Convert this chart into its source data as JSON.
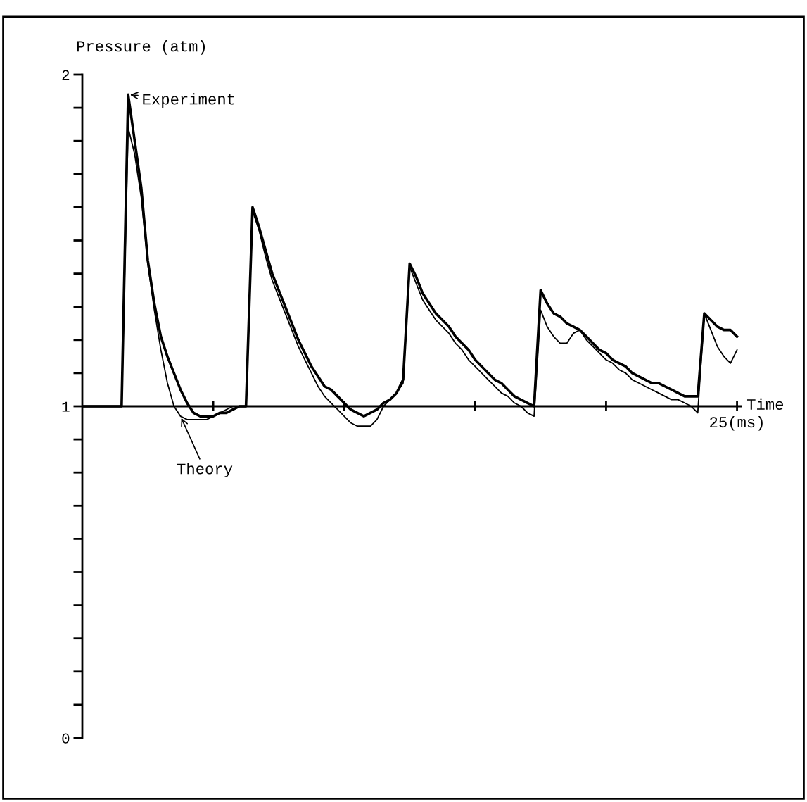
{
  "chart_data": {
    "type": "line",
    "ylabel": "Pressure (atm)",
    "xlabel": "Time",
    "categories": [
      null,
      null,
      null,
      null,
      null,
      null,
      null,
      null,
      null,
      null,
      null,
      null,
      null,
      null,
      null,
      null,
      null,
      null,
      null,
      null,
      null,
      null,
      null,
      null,
      null,
      null,
      null,
      null,
      null,
      null,
      null,
      null,
      null,
      null,
      null,
      null,
      null,
      null,
      null,
      null,
      null,
      null,
      null,
      null,
      null,
      null,
      null,
      null,
      null,
      null,
      null,
      null,
      null,
      null,
      null,
      null,
      null,
      null,
      null,
      null,
      null,
      null,
      null,
      null,
      null,
      null,
      null,
      null,
      null,
      null,
      null,
      null,
      null,
      null,
      null,
      null,
      null,
      null,
      null,
      null,
      null,
      null,
      null,
      null,
      null,
      null,
      null,
      null,
      null,
      null,
      null,
      null,
      null,
      null,
      null,
      null,
      null,
      null,
      null,
      null,
      null
    ],
    "ylim": [
      0,
      2
    ],
    "yticks": [
      {
        "value": 0,
        "label": "0"
      },
      {
        "value": 0.1,
        "label": null
      },
      {
        "value": 0.2,
        "label": null
      },
      {
        "value": 0.3,
        "label": null
      },
      {
        "value": 0.4,
        "label": null
      },
      {
        "value": 0.5,
        "label": null
      },
      {
        "value": 0.6,
        "label": null
      },
      {
        "value": 0.7,
        "label": null
      },
      {
        "value": 0.8,
        "label": null
      },
      {
        "value": 0.9,
        "label": null
      },
      {
        "value": 1,
        "label": "1"
      },
      {
        "value": 1.1,
        "label": null
      },
      {
        "value": 1.2,
        "label": null
      },
      {
        "value": 1.3,
        "label": null
      },
      {
        "value": 1.4,
        "label": null
      },
      {
        "value": 1.5,
        "label": null
      },
      {
        "value": 1.6,
        "label": null
      },
      {
        "value": 1.7,
        "label": null
      },
      {
        "value": 1.8,
        "label": null
      },
      {
        "value": 1.9,
        "label": null
      },
      {
        "value": 2,
        "label": "2"
      }
    ],
    "tick_labels": "y",
    "grid": false,
    "ref_lines": [
      {
        "axis": "y",
        "value": 1,
        "color": "#000000",
        "line_style": "solid"
      }
    ],
    "legend": false,
    "marker": "none",
    "series": [
      {
        "color": "#000000",
        "line_style": "solid",
        "values": [
          1.0,
          1.0,
          1.0,
          1.0,
          1.0,
          1.0,
          1.0,
          1.94,
          1.8,
          1.66,
          1.44,
          1.31,
          1.21,
          1.15,
          1.1,
          1.05,
          1.01,
          0.98,
          0.97,
          0.97,
          0.97,
          0.98,
          0.98,
          0.99,
          1.0,
          1.0,
          1.6,
          1.54,
          1.47,
          1.4,
          1.35,
          1.3,
          1.25,
          1.2,
          1.16,
          1.12,
          1.09,
          1.06,
          1.05,
          1.03,
          1.01,
          0.99,
          0.98,
          0.97,
          0.98,
          0.99,
          1.01,
          1.02,
          1.04,
          1.08,
          1.43,
          1.39,
          1.34,
          1.31,
          1.28,
          1.26,
          1.24,
          1.21,
          1.19,
          1.17,
          1.14,
          1.12,
          1.1,
          1.08,
          1.07,
          1.05,
          1.03,
          1.02,
          1.01,
          1.0,
          1.35,
          1.31,
          1.28,
          1.27,
          1.25,
          1.24,
          1.23,
          1.21,
          1.19,
          1.17,
          1.16,
          1.14,
          1.13,
          1.12,
          1.1,
          1.09,
          1.08,
          1.07,
          1.07,
          1.06,
          1.05,
          1.04,
          1.03,
          1.03,
          1.03,
          1.28,
          1.26,
          1.24,
          1.23,
          1.23,
          1.21
        ]
      },
      {
        "color": "#000000",
        "line_style": "solid",
        "values": [
          1.0,
          1.0,
          1.0,
          1.0,
          1.0,
          1.0,
          1.0,
          1.84,
          1.76,
          1.63,
          1.43,
          1.29,
          1.17,
          1.07,
          1.0,
          0.97,
          0.96,
          0.96,
          0.96,
          0.96,
          0.97,
          0.98,
          0.99,
          1.0,
          1.0,
          1.0,
          1.59,
          1.53,
          1.45,
          1.38,
          1.33,
          1.28,
          1.23,
          1.18,
          1.14,
          1.1,
          1.06,
          1.03,
          1.01,
          0.99,
          0.97,
          0.95,
          0.94,
          0.94,
          0.94,
          0.96,
          1.0,
          1.02,
          1.04,
          1.07,
          1.42,
          1.37,
          1.32,
          1.29,
          1.26,
          1.24,
          1.22,
          1.19,
          1.17,
          1.14,
          1.12,
          1.1,
          1.08,
          1.06,
          1.04,
          1.03,
          1.01,
          1.0,
          0.98,
          0.97,
          1.29,
          1.24,
          1.21,
          1.19,
          1.19,
          1.22,
          1.23,
          1.2,
          1.18,
          1.16,
          1.14,
          1.13,
          1.11,
          1.1,
          1.08,
          1.07,
          1.06,
          1.05,
          1.04,
          1.03,
          1.02,
          1.02,
          1.01,
          1.0,
          0.98,
          1.28,
          1.23,
          1.18,
          1.15,
          1.13,
          1.17
        ]
      }
    ],
    "annotations": [
      "Experiment",
      "Theory",
      "25(ms)"
    ]
  }
}
